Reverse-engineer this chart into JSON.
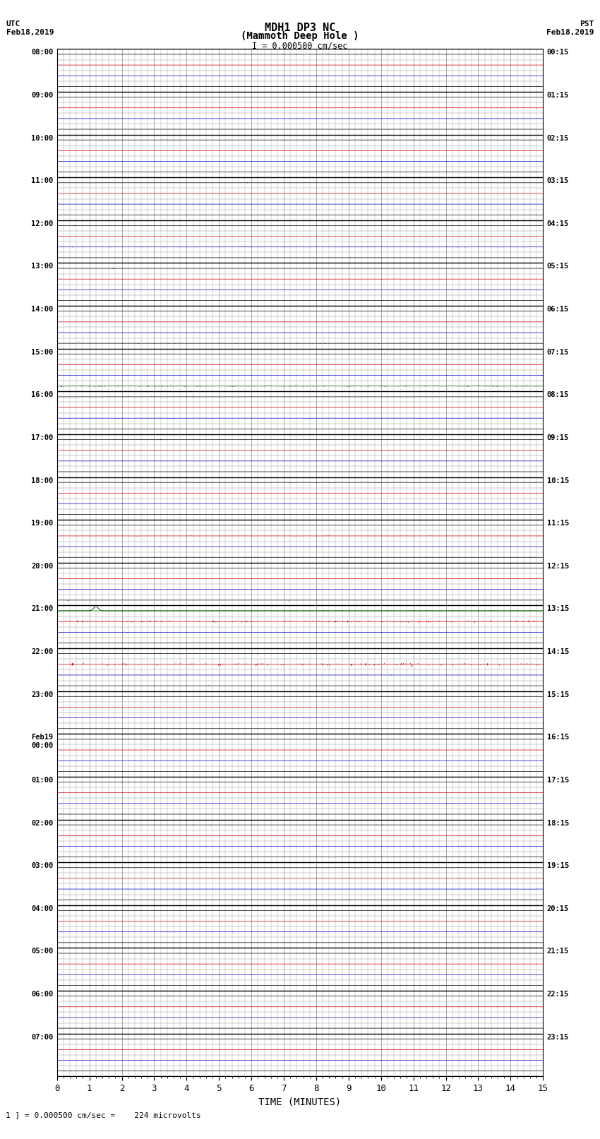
{
  "title_line1": "MDH1 DP3 NC",
  "title_line2": "(Mammoth Deep Hole )",
  "scale_label": "I = 0.000500 cm/sec",
  "left_header": "UTC\nFeb18,2019",
  "right_header": "PST\nFeb18,2019",
  "bottom_note": "1 ] = 0.000500 cm/sec =    224 microvolts",
  "xlabel": "TIME (MINUTES)",
  "left_times": [
    "08:00",
    "",
    "",
    "",
    "09:00",
    "",
    "",
    "",
    "10:00",
    "",
    "",
    "",
    "11:00",
    "",
    "",
    "",
    "12:00",
    "",
    "",
    "",
    "13:00",
    "",
    "",
    "",
    "14:00",
    "",
    "",
    "",
    "15:00",
    "",
    "",
    "",
    "16:00",
    "",
    "",
    "",
    "17:00",
    "",
    "",
    "",
    "18:00",
    "",
    "",
    "",
    "19:00",
    "",
    "",
    "",
    "20:00",
    "",
    "",
    "",
    "21:00",
    "",
    "",
    "",
    "22:00",
    "",
    "",
    "",
    "23:00",
    "",
    "",
    "",
    "Feb19\n00:00",
    "",
    "",
    "",
    "01:00",
    "",
    "",
    "",
    "02:00",
    "",
    "",
    "",
    "03:00",
    "",
    "",
    "",
    "04:00",
    "",
    "",
    "",
    "05:00",
    "",
    "",
    "",
    "06:00",
    "",
    "",
    "",
    "07:00",
    "",
    "",
    ""
  ],
  "right_times": [
    "00:15",
    "",
    "",
    "",
    "01:15",
    "",
    "",
    "",
    "02:15",
    "",
    "",
    "",
    "03:15",
    "",
    "",
    "",
    "04:15",
    "",
    "",
    "",
    "05:15",
    "",
    "",
    "",
    "06:15",
    "",
    "",
    "",
    "07:15",
    "",
    "",
    "",
    "08:15",
    "",
    "",
    "",
    "09:15",
    "",
    "",
    "",
    "10:15",
    "",
    "",
    "",
    "11:15",
    "",
    "",
    "",
    "12:15",
    "",
    "",
    "",
    "13:15",
    "",
    "",
    "",
    "14:15",
    "",
    "",
    "",
    "15:15",
    "",
    "",
    "",
    "16:15",
    "",
    "",
    "",
    "17:15",
    "",
    "",
    "",
    "18:15",
    "",
    "",
    "",
    "19:15",
    "",
    "",
    "",
    "20:15",
    "",
    "",
    "",
    "21:15",
    "",
    "",
    "",
    "22:15",
    "",
    "",
    "",
    "23:15",
    "",
    "",
    ""
  ],
  "n_hours": 24,
  "sub_traces": 4,
  "n_points": 1800,
  "x_min": 0,
  "x_max": 15,
  "background_color": "#ffffff",
  "grid_color": "#888888",
  "hour_line_color": "#000000",
  "sub_colors": [
    "#000000",
    "#cc0000",
    "#0000cc",
    "#000000"
  ],
  "noise_amplitude": 0.025,
  "big_event_hour": 13,
  "big_event_sub": 0,
  "big_event_minute": 1.2,
  "big_event_amplitude": 0.45,
  "big_event_color": "#006400",
  "green_row_hour": 7,
  "green_row_sub": 3,
  "green_row_color": "#006400",
  "green_row_amplitude": 0.06,
  "special_rows": [
    {
      "hour": 13,
      "sub": 1,
      "color": "#cc0000",
      "amplitude": 0.08
    },
    {
      "hour": 14,
      "sub": 1,
      "color": "#cc0000",
      "amplitude": 0.12
    }
  ]
}
